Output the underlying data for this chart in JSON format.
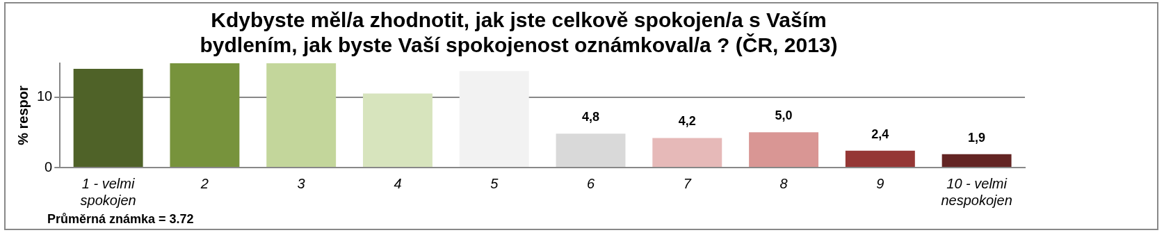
{
  "chart_data": {
    "type": "bar",
    "title": "Kdybyste měl/a zhodnotit, jak jste celkově spokojen/a s Vaším bydlením, jak byste Vaší spokojenost oznámkoval/a ? (ČR, 2013)",
    "ylabel": "% respor",
    "categories": [
      "1 - velmi spokojen",
      "2",
      "3",
      "4",
      "5",
      "6",
      "7",
      "8",
      "9",
      "10 - velmi nespokojen"
    ],
    "values": [
      14.0,
      14.8,
      14.8,
      10.5,
      13.7,
      4.8,
      4.2,
      5.0,
      2.4,
      1.9
    ],
    "value_labels": [
      null,
      null,
      null,
      null,
      null,
      "4,8",
      "4,2",
      "5,0",
      "2,4",
      "1,9"
    ],
    "colors": [
      "#4f6228",
      "#77933c",
      "#c3d69b",
      "#d7e4bd",
      "#f2f2f2",
      "#d9d9d9",
      "#e6b9b8",
      "#d99694",
      "#953735",
      "#632423"
    ],
    "ylim": [
      0,
      14.8
    ],
    "yticks": [
      0,
      10
    ],
    "grid": "y",
    "legend": false,
    "annotations": [
      "Průměrná známka = 3.72"
    ]
  }
}
